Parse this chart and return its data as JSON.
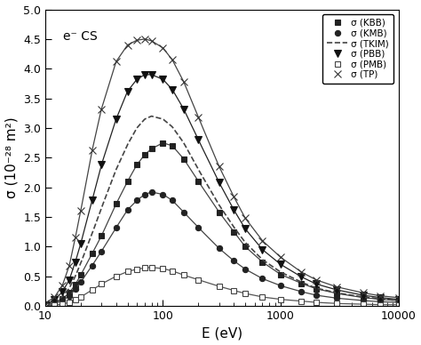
{
  "xlabel": "E (eV)",
  "ylabel": "σ (10⁻²⁸ m²)",
  "xlim": [
    10,
    10000
  ],
  "ylim": [
    0,
    5.0
  ],
  "yticks": [
    0.0,
    0.5,
    1.0,
    1.5,
    2.0,
    2.5,
    3.0,
    3.5,
    4.0,
    4.5,
    5.0
  ],
  "annotation": "e⁻ CS",
  "series": {
    "KBB": {
      "label": "σ (KBB)",
      "marker": "s",
      "mfc": "#222222",
      "mec": "#222222",
      "color": "#444444",
      "linestyle": "-",
      "linewidth": 0.9,
      "markersize": 4.5,
      "E": [
        10,
        12,
        14,
        16,
        18,
        20,
        25,
        30,
        40,
        50,
        60,
        70,
        80,
        100,
        120,
        150,
        200,
        300,
        400,
        500,
        700,
        1000,
        1500,
        2000,
        3000,
        5000,
        7000,
        10000
      ],
      "sigma": [
        0.02,
        0.06,
        0.12,
        0.22,
        0.36,
        0.52,
        0.88,
        1.18,
        1.72,
        2.1,
        2.38,
        2.55,
        2.65,
        2.75,
        2.7,
        2.48,
        2.1,
        1.58,
        1.25,
        1.0,
        0.74,
        0.53,
        0.38,
        0.29,
        0.21,
        0.14,
        0.11,
        0.09
      ]
    },
    "KMB": {
      "label": "σ (KMB)",
      "marker": "o",
      "mfc": "#222222",
      "mec": "#222222",
      "color": "#444444",
      "linestyle": "-",
      "linewidth": 0.9,
      "markersize": 4.5,
      "E": [
        10,
        12,
        14,
        16,
        18,
        20,
        25,
        30,
        40,
        50,
        60,
        70,
        80,
        100,
        120,
        150,
        200,
        300,
        400,
        500,
        700,
        1000,
        1500,
        2000,
        3000,
        5000,
        7000,
        10000
      ],
      "sigma": [
        0.01,
        0.04,
        0.09,
        0.17,
        0.28,
        0.4,
        0.68,
        0.92,
        1.32,
        1.62,
        1.78,
        1.88,
        1.92,
        1.88,
        1.78,
        1.58,
        1.32,
        0.97,
        0.76,
        0.62,
        0.46,
        0.34,
        0.24,
        0.18,
        0.13,
        0.09,
        0.07,
        0.06
      ]
    },
    "TKIM": {
      "label": "σ (TKIM)",
      "marker": "None",
      "mfc": "none",
      "mec": "#444444",
      "color": "#444444",
      "linestyle": "--",
      "linewidth": 1.2,
      "markersize": 0,
      "E": [
        10,
        12,
        14,
        16,
        18,
        20,
        25,
        30,
        40,
        50,
        60,
        70,
        80,
        100,
        120,
        150,
        200,
        300,
        400,
        500,
        700,
        1000,
        1500,
        2000,
        3000,
        5000,
        7000,
        10000
      ],
      "sigma": [
        0.02,
        0.07,
        0.16,
        0.3,
        0.5,
        0.72,
        1.22,
        1.65,
        2.3,
        2.72,
        3.0,
        3.15,
        3.2,
        3.15,
        3.02,
        2.75,
        2.3,
        1.7,
        1.33,
        1.07,
        0.78,
        0.57,
        0.4,
        0.3,
        0.22,
        0.15,
        0.12,
        0.09
      ]
    },
    "PBB": {
      "label": "σ (PBB)",
      "marker": "v",
      "mfc": "#111111",
      "mec": "#111111",
      "color": "#222222",
      "linestyle": "-",
      "linewidth": 0.9,
      "markersize": 5.5,
      "E": [
        10,
        12,
        14,
        16,
        18,
        20,
        25,
        30,
        40,
        50,
        60,
        70,
        80,
        100,
        120,
        150,
        200,
        300,
        400,
        500,
        700,
        1000,
        1500,
        2000,
        3000,
        5000,
        7000,
        10000
      ],
      "sigma": [
        0.02,
        0.1,
        0.24,
        0.44,
        0.74,
        1.05,
        1.78,
        2.38,
        3.15,
        3.62,
        3.82,
        3.9,
        3.9,
        3.82,
        3.65,
        3.32,
        2.8,
        2.08,
        1.62,
        1.3,
        0.95,
        0.7,
        0.49,
        0.37,
        0.27,
        0.18,
        0.14,
        0.11
      ]
    },
    "PMB": {
      "label": "σ (PMB)",
      "marker": "s",
      "mfc": "white",
      "mec": "#444444",
      "color": "#555555",
      "linestyle": "-",
      "linewidth": 0.9,
      "markersize": 4.5,
      "E": [
        10,
        12,
        14,
        16,
        18,
        20,
        25,
        30,
        40,
        50,
        60,
        70,
        80,
        100,
        120,
        150,
        200,
        300,
        400,
        500,
        700,
        1000,
        1500,
        2000,
        3000,
        5000,
        7000,
        10000
      ],
      "sigma": [
        0.0,
        0.01,
        0.03,
        0.06,
        0.1,
        0.15,
        0.27,
        0.37,
        0.5,
        0.58,
        0.62,
        0.64,
        0.65,
        0.63,
        0.59,
        0.52,
        0.44,
        0.33,
        0.26,
        0.21,
        0.15,
        0.11,
        0.08,
        0.06,
        0.04,
        0.03,
        0.02,
        0.02
      ]
    },
    "TP": {
      "label": "σ (TP)",
      "marker": "x",
      "mfc": "none",
      "mec": "#333333",
      "color": "#444444",
      "linestyle": "-",
      "linewidth": 0.9,
      "markersize": 5.5,
      "E": [
        10,
        12,
        14,
        16,
        18,
        20,
        25,
        30,
        40,
        50,
        60,
        70,
        80,
        100,
        120,
        150,
        200,
        300,
        400,
        500,
        700,
        1000,
        1500,
        2000,
        3000,
        5000,
        7000,
        10000
      ],
      "sigma": [
        0.04,
        0.15,
        0.35,
        0.68,
        1.15,
        1.6,
        2.62,
        3.32,
        4.12,
        4.4,
        4.48,
        4.5,
        4.47,
        4.35,
        4.15,
        3.78,
        3.18,
        2.35,
        1.84,
        1.48,
        1.1,
        0.82,
        0.57,
        0.44,
        0.32,
        0.22,
        0.17,
        0.14
      ]
    }
  },
  "background_color": "#ffffff",
  "legend_fontsize": 7.5,
  "axis_fontsize": 11,
  "tick_fontsize": 9
}
